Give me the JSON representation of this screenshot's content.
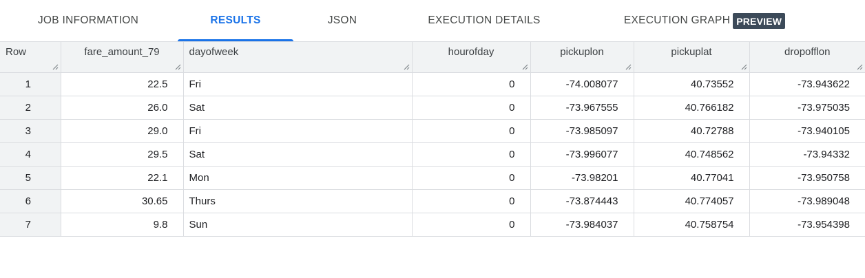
{
  "tabs": [
    {
      "label": "JOB INFORMATION",
      "active": false
    },
    {
      "label": "RESULTS",
      "active": true
    },
    {
      "label": "JSON",
      "active": false
    },
    {
      "label": "EXECUTION DETAILS",
      "active": false
    },
    {
      "label": "EXECUTION GRAPH",
      "badge": "PREVIEW",
      "active": false
    }
  ],
  "colors": {
    "accent": "#1a73e8",
    "header_bg": "#f1f3f4",
    "badge_bg": "#3c4a59",
    "border": "#dadce0"
  },
  "table": {
    "columns": [
      "Row",
      "fare_amount_79",
      "dayofweek",
      "hourofday",
      "pickuplon",
      "pickuplat",
      "dropofflon"
    ],
    "rows": [
      [
        "1",
        "22.5",
        "Fri",
        "0",
        "-74.008077",
        "40.73552",
        "-73.943622"
      ],
      [
        "2",
        "26.0",
        "Sat",
        "0",
        "-73.967555",
        "40.766182",
        "-73.975035"
      ],
      [
        "3",
        "29.0",
        "Fri",
        "0",
        "-73.985097",
        "40.72788",
        "-73.940105"
      ],
      [
        "4",
        "29.5",
        "Sat",
        "0",
        "-73.996077",
        "40.748562",
        "-73.94332"
      ],
      [
        "5",
        "22.1",
        "Mon",
        "0",
        "-73.98201",
        "40.77041",
        "-73.950758"
      ],
      [
        "6",
        "30.65",
        "Thurs",
        "0",
        "-73.874443",
        "40.774057",
        "-73.989048"
      ],
      [
        "7",
        "9.8",
        "Sun",
        "0",
        "-73.984037",
        "40.758754",
        "-73.954398"
      ]
    ]
  }
}
